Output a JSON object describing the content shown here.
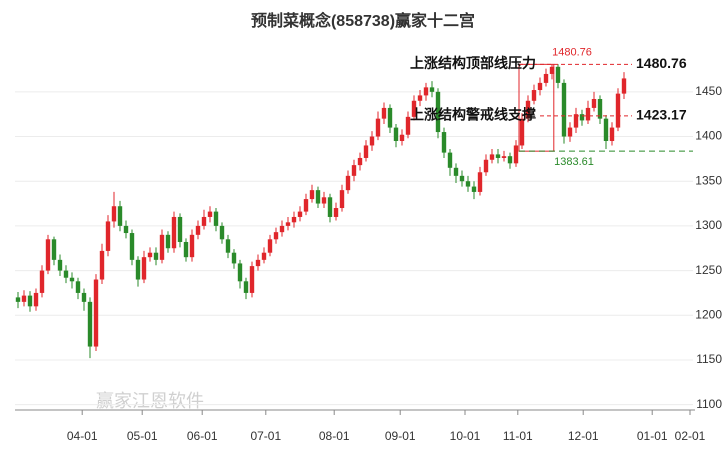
{
  "chart_data": {
    "type": "candlestick",
    "title": "预制菜概念(858738)赢家十二宫",
    "watermark": "赢家江恩软件",
    "up_color": "#e0262b",
    "down_color": "#2a8a2a",
    "open": [
      1220,
      1215,
      1222,
      1210,
      1225,
      1250,
      1285,
      1262,
      1250,
      1242,
      1238,
      1225,
      1215,
      1165,
      1240,
      1272,
      1305,
      1322,
      1300,
      1292,
      1262,
      1240,
      1265,
      1270,
      1262,
      1290,
      1275,
      1310,
      1282,
      1265,
      1290,
      1300,
      1310,
      1316,
      1300,
      1285,
      1270,
      1258,
      1238,
      1225,
      1255,
      1262,
      1270,
      1285,
      1293,
      1300,
      1304,
      1310,
      1316,
      1330,
      1340,
      1325,
      1332,
      1310,
      1320,
      1340,
      1356,
      1368,
      1376,
      1390,
      1400,
      1420,
      1432,
      1410,
      1395,
      1402,
      1422,
      1440,
      1446,
      1455,
      1450,
      1405,
      1382,
      1365,
      1356,
      1350,
      1344,
      1338,
      1360,
      1374,
      1380,
      1376,
      1378,
      1370,
      1390,
      1420,
      1440,
      1452,
      1460,
      1470,
      1478,
      1460,
      1400,
      1410,
      1425,
      1418,
      1432,
      1442,
      1420,
      1395,
      1410,
      1448
    ],
    "high": [
      1226,
      1228,
      1227,
      1230,
      1256,
      1290,
      1288,
      1268,
      1256,
      1248,
      1242,
      1230,
      1220,
      1246,
      1280,
      1312,
      1338,
      1328,
      1306,
      1296,
      1266,
      1272,
      1276,
      1276,
      1296,
      1294,
      1316,
      1314,
      1286,
      1296,
      1306,
      1318,
      1322,
      1320,
      1304,
      1290,
      1274,
      1262,
      1242,
      1260,
      1268,
      1276,
      1290,
      1298,
      1306,
      1310,
      1316,
      1322,
      1336,
      1346,
      1344,
      1338,
      1336,
      1326,
      1346,
      1362,
      1374,
      1382,
      1396,
      1406,
      1428,
      1438,
      1436,
      1414,
      1408,
      1428,
      1446,
      1452,
      1460,
      1462,
      1454,
      1410,
      1386,
      1370,
      1362,
      1356,
      1350,
      1366,
      1380,
      1386,
      1386,
      1384,
      1382,
      1396,
      1426,
      1446,
      1458,
      1466,
      1476,
      1481,
      1481,
      1464,
      1416,
      1432,
      1430,
      1440,
      1450,
      1446,
      1424,
      1416,
      1454,
      1472
    ],
    "low": [
      1208,
      1210,
      1204,
      1205,
      1220,
      1246,
      1256,
      1244,
      1236,
      1230,
      1218,
      1205,
      1152,
      1160,
      1235,
      1266,
      1298,
      1294,
      1286,
      1256,
      1232,
      1236,
      1260,
      1256,
      1258,
      1270,
      1270,
      1276,
      1260,
      1260,
      1285,
      1296,
      1304,
      1294,
      1280,
      1264,
      1252,
      1230,
      1218,
      1220,
      1250,
      1258,
      1266,
      1280,
      1288,
      1295,
      1298,
      1305,
      1312,
      1326,
      1320,
      1320,
      1304,
      1306,
      1316,
      1336,
      1350,
      1362,
      1372,
      1384,
      1396,
      1414,
      1404,
      1388,
      1390,
      1398,
      1418,
      1434,
      1440,
      1444,
      1398,
      1376,
      1356,
      1348,
      1344,
      1338,
      1330,
      1334,
      1356,
      1370,
      1370,
      1372,
      1364,
      1366,
      1386,
      1416,
      1436,
      1446,
      1456,
      1464,
      1454,
      1392,
      1394,
      1404,
      1412,
      1414,
      1428,
      1414,
      1386,
      1390,
      1406,
      1442
    ],
    "close": [
      1215,
      1222,
      1210,
      1225,
      1250,
      1285,
      1262,
      1250,
      1242,
      1238,
      1225,
      1215,
      1165,
      1240,
      1272,
      1305,
      1322,
      1300,
      1292,
      1262,
      1240,
      1265,
      1270,
      1262,
      1290,
      1275,
      1310,
      1282,
      1265,
      1290,
      1300,
      1310,
      1316,
      1300,
      1285,
      1270,
      1258,
      1238,
      1225,
      1255,
      1262,
      1270,
      1285,
      1293,
      1300,
      1304,
      1310,
      1316,
      1330,
      1340,
      1325,
      1332,
      1310,
      1320,
      1340,
      1356,
      1368,
      1376,
      1390,
      1400,
      1420,
      1432,
      1410,
      1395,
      1402,
      1422,
      1440,
      1446,
      1455,
      1450,
      1405,
      1382,
      1365,
      1356,
      1350,
      1344,
      1338,
      1360,
      1374,
      1380,
      1376,
      1378,
      1370,
      1390,
      1420,
      1440,
      1452,
      1460,
      1470,
      1478,
      1460,
      1400,
      1410,
      1425,
      1418,
      1432,
      1442,
      1420,
      1395,
      1410,
      1448,
      1465
    ],
    "ylim": [
      1094,
      1508
    ],
    "yticks": [
      1100,
      1150,
      1200,
      1250,
      1300,
      1350,
      1400,
      1450
    ],
    "xlim": [
      -0.5,
      112.5
    ],
    "xticks": [
      {
        "value": 10.7,
        "label": "04-01"
      },
      {
        "value": 20.7,
        "label": "05-01"
      },
      {
        "value": 30.7,
        "label": "06-01"
      },
      {
        "value": 41.3,
        "label": "07-01"
      },
      {
        "value": 52.7,
        "label": "08-01"
      },
      {
        "value": 63.7,
        "label": "09-01"
      },
      {
        "value": 74.5,
        "label": "10-01"
      },
      {
        "value": 83.3,
        "label": "11-01"
      },
      {
        "value": 94.2,
        "label": "12-01"
      },
      {
        "value": 105.7,
        "label": "01-01"
      },
      {
        "value": 112,
        "label": "02-01"
      }
    ],
    "levels": [
      {
        "name": "上涨结构顶部线压力",
        "value": 1480.76,
        "color": "#e0262b"
      },
      {
        "name": "上涨结构警戒线支撑",
        "value": 1423.17,
        "color": "#e0262b"
      }
    ],
    "range_low": {
      "value": 1383.61,
      "color": "#2a8a2a"
    }
  }
}
